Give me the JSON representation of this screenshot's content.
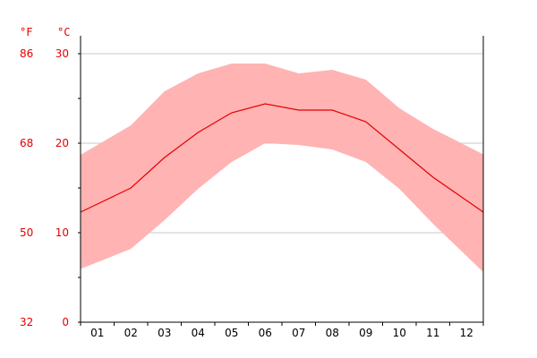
{
  "chart_data": {
    "type": "area",
    "categories": [
      "01",
      "02",
      "03",
      "04",
      "05",
      "06",
      "07",
      "08",
      "09",
      "10",
      "11",
      "12"
    ],
    "units": {
      "left": "°F",
      "right": "°C"
    },
    "y_celsius_range": [
      0,
      30
    ],
    "y_celsius_ticks": [
      0,
      10,
      20,
      30
    ],
    "y_fahrenheit_ticks": [
      32,
      50,
      68,
      86
    ],
    "series": [
      {
        "role": "high",
        "values": [
          19.8,
          22.0,
          25.8,
          27.8,
          28.9,
          28.9,
          27.8,
          28.2,
          27.1,
          23.9,
          21.6,
          19.7
        ]
      },
      {
        "role": "mean",
        "values": [
          13.2,
          15.0,
          18.4,
          21.2,
          23.4,
          24.4,
          23.7,
          23.7,
          22.4,
          19.3,
          16.2,
          13.6
        ]
      },
      {
        "role": "low",
        "values": [
          6.7,
          8.2,
          11.4,
          14.9,
          17.9,
          20.0,
          19.8,
          19.3,
          17.9,
          14.9,
          11.0,
          7.4
        ]
      }
    ],
    "grid": true,
    "colors": {
      "band": "#ffb3b3",
      "line": "#e60000",
      "axis_text": "#e60000",
      "grid": "#c8c8c8",
      "axis": "#000000"
    }
  }
}
